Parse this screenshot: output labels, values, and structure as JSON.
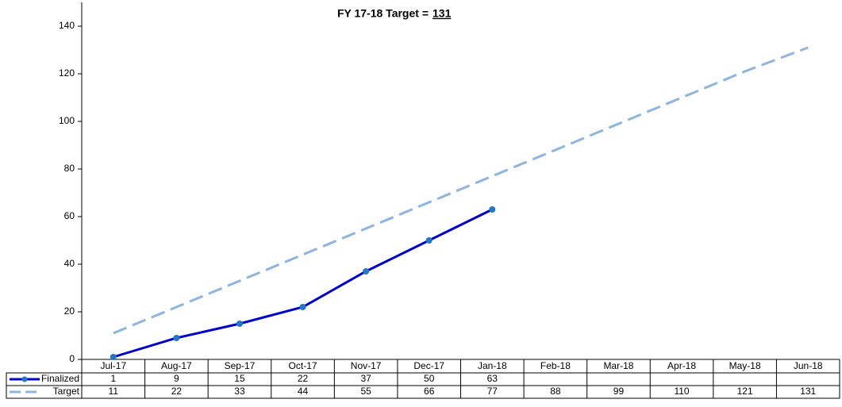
{
  "chart_data": {
    "type": "line",
    "title": "FY 17-18 Target =",
    "title_highlight": "131",
    "categories": [
      "Jul-17",
      "Aug-17",
      "Sep-17",
      "Oct-17",
      "Nov-17",
      "Dec-17",
      "Jan-18",
      "Feb-18",
      "Mar-18",
      "Apr-18",
      "May-18",
      "Jun-18"
    ],
    "series": [
      {
        "name": "Finalized",
        "color": "#0000cc",
        "marker_color": "#1f78c8",
        "dashed": false,
        "markers": true,
        "values": [
          1,
          9,
          15,
          22,
          37,
          50,
          63,
          null,
          null,
          null,
          null,
          null
        ]
      },
      {
        "name": "Target",
        "color": "#8db4e2",
        "dashed": true,
        "markers": false,
        "values": [
          11,
          22,
          33,
          44,
          55,
          66,
          77,
          88,
          99,
          110,
          121,
          131
        ]
      }
    ],
    "ylim": [
      0,
      150
    ],
    "yticks": [
      0,
      20,
      40,
      60,
      80,
      100,
      120,
      140
    ]
  }
}
